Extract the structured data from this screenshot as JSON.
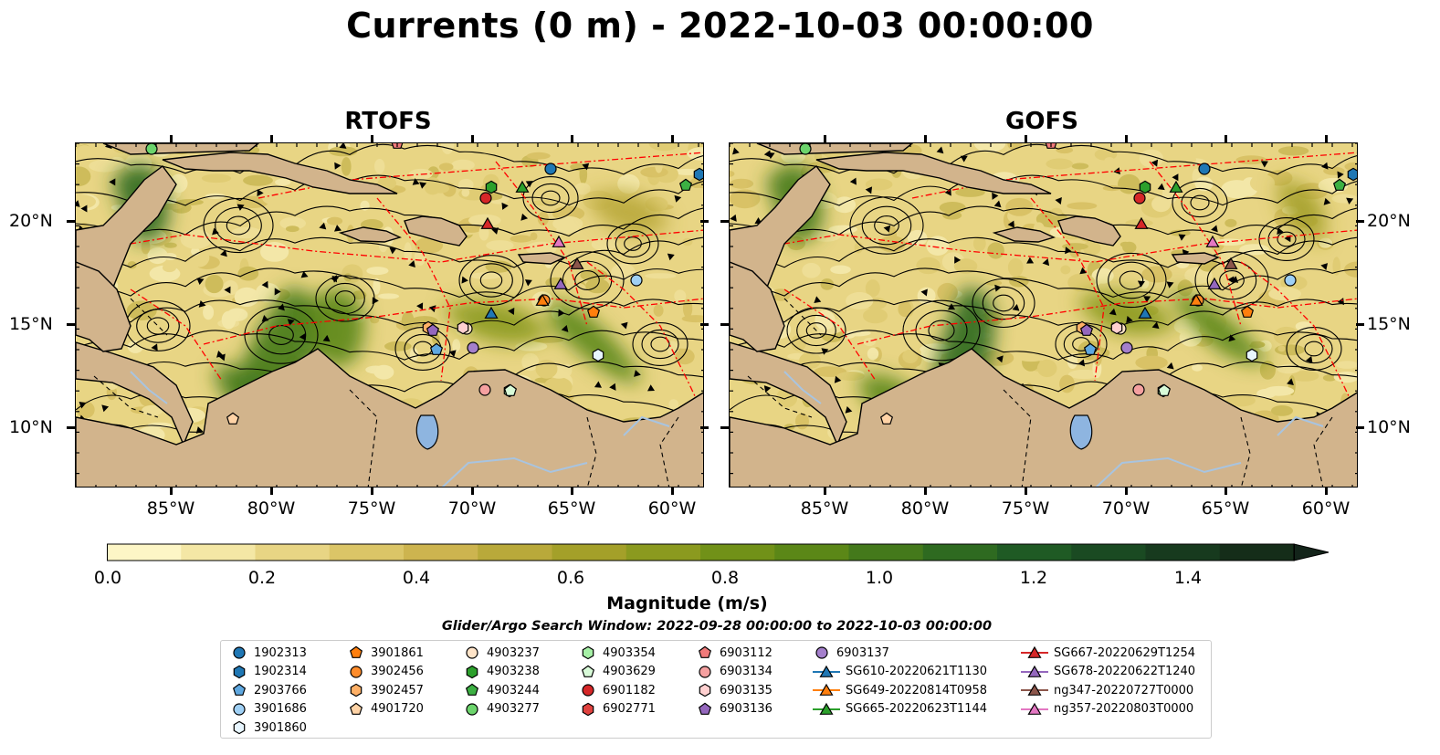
{
  "title": "Currents (0 m) - 2022-10-03 00:00:00",
  "panels": [
    {
      "id": "rtofs",
      "title": "RTOFS"
    },
    {
      "id": "gofs",
      "title": "GOFS"
    }
  ],
  "lon_ticks": [
    "85°W",
    "80°W",
    "75°W",
    "70°W",
    "65°W",
    "60°W"
  ],
  "lat_ticks": [
    "20°N",
    "15°N",
    "10°N"
  ],
  "colorbar": {
    "label": "Magnitude (m/s)",
    "ticks": [
      "0.0",
      "0.2",
      "0.4",
      "0.6",
      "0.8",
      "1.0",
      "1.2",
      "1.4"
    ],
    "range": [
      0,
      1.6
    ],
    "extend": "max",
    "colors": [
      "#fdf6c6",
      "#f4e7a5",
      "#e8d584",
      "#dbc567",
      "#cdb44f",
      "#b9a93a",
      "#a4a029",
      "#8b9a1f",
      "#719118",
      "#5b8717",
      "#44791b",
      "#2e6a20",
      "#1f5a24",
      "#1a4a22",
      "#173a1e",
      "#152d19",
      "#13241a"
    ]
  },
  "search_window": "Glider/Argo Search Window: 2022-09-28 00:00:00 to 2022-10-03 00:00:00",
  "map_colors": {
    "land": "#d2b48c",
    "lake": "#8eb5e0",
    "river": "#a8c4e0",
    "eez": "#ff0000",
    "stream": "#000000"
  },
  "legend": [
    {
      "label": "1902313",
      "marker": "circle",
      "color": "#1f77b4"
    },
    {
      "label": "1902314",
      "marker": "hexagon",
      "color": "#1f77b4"
    },
    {
      "label": "2903766",
      "marker": "pentagon",
      "color": "#5fa8e0"
    },
    {
      "label": "3901686",
      "marker": "circle",
      "color": "#9fd0f5"
    },
    {
      "label": "3901860",
      "marker": "hexagon",
      "color": "#e8f6ff"
    },
    {
      "label": "3901861",
      "marker": "pentagon",
      "color": "#ff7f0e"
    },
    {
      "label": "3902456",
      "marker": "circle",
      "color": "#ff8c2a"
    },
    {
      "label": "3902457",
      "marker": "hexagon",
      "color": "#ffb066"
    },
    {
      "label": "4901720",
      "marker": "pentagon",
      "color": "#ffd3a6"
    },
    {
      "label": "4903237",
      "marker": "circle",
      "color": "#ffe4c8"
    },
    {
      "label": "4903238",
      "marker": "hexagon",
      "color": "#2ca02c"
    },
    {
      "label": "4903244",
      "marker": "pentagon",
      "color": "#3cb043"
    },
    {
      "label": "4903277",
      "marker": "circle",
      "color": "#6cd46c"
    },
    {
      "label": "4903354",
      "marker": "hexagon",
      "color": "#a6f0a6"
    },
    {
      "label": "4903629",
      "marker": "pentagon",
      "color": "#d8fad8"
    },
    {
      "label": "6901182",
      "marker": "circle",
      "color": "#d62728"
    },
    {
      "label": "6902771",
      "marker": "hexagon",
      "color": "#e0423f"
    },
    {
      "label": "6903112",
      "marker": "pentagon",
      "color": "#f07a7a"
    },
    {
      "label": "6903134",
      "marker": "circle",
      "color": "#f5a0a0"
    },
    {
      "label": "6903135",
      "marker": "hexagon",
      "color": "#ffd0d0"
    },
    {
      "label": "6903136",
      "marker": "pentagon",
      "color": "#9467bd"
    },
    {
      "label": "6903137",
      "marker": "circle",
      "color": "#a47fcc"
    },
    {
      "label": "SG610-20220621T1130",
      "marker": "triangle",
      "color": "#1f77b4"
    },
    {
      "label": "SG649-20220814T0958",
      "marker": "triangle",
      "color": "#ff7f0e"
    },
    {
      "label": "SG665-20220623T1144",
      "marker": "triangle",
      "color": "#2ca02c"
    },
    {
      "label": "SG667-20220629T1254",
      "marker": "triangle",
      "color": "#d62728"
    },
    {
      "label": "SG678-20220622T1240",
      "marker": "triangle",
      "color": "#9467bd"
    },
    {
      "label": "ng347-20220727T0000",
      "marker": "triangle",
      "color": "#8c564b"
    },
    {
      "label": "ng357-20220803T0000",
      "marker": "triangle",
      "color": "#e377c2"
    }
  ]
}
